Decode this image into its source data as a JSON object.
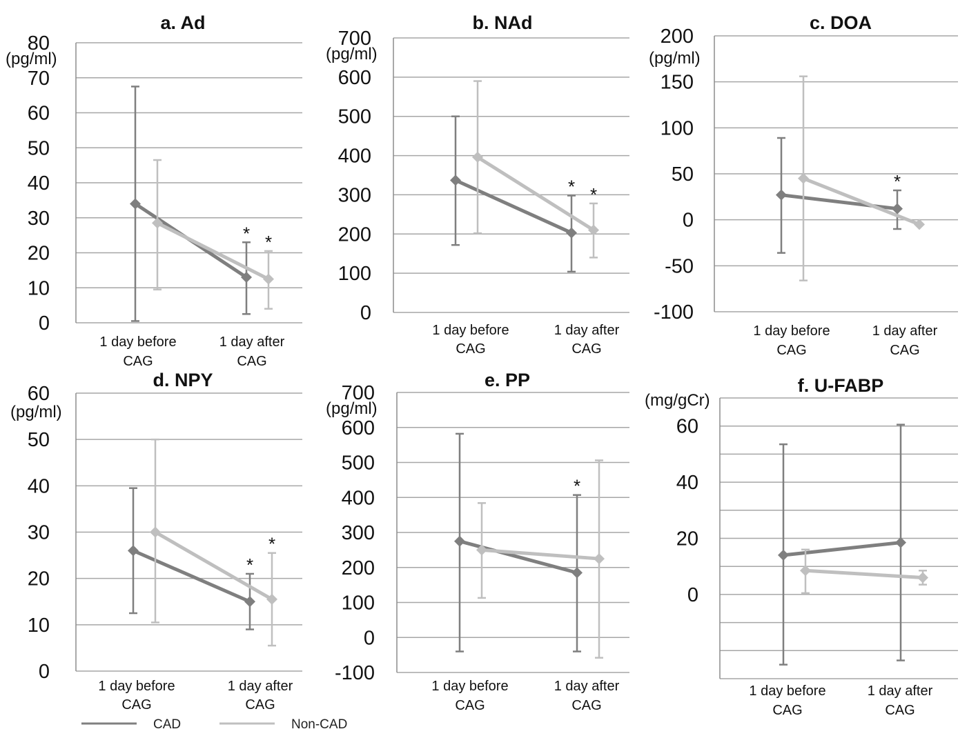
{
  "colors": {
    "cad": "#7f7f7f",
    "non_cad": "#bfbfbf",
    "grid": "#a6a6a6",
    "axis": "#8c8c8c",
    "text": "#111111"
  },
  "legend": {
    "entries": [
      "CAD",
      "Non-CAD"
    ],
    "placement": "bottom-left"
  },
  "chart_data": [
    {
      "id": "a",
      "type": "line",
      "title": "a. Ad",
      "ylabel": "(pg/ml)",
      "ylim": [
        0,
        80
      ],
      "yticks": [
        "0",
        "10",
        "20",
        "30",
        "40",
        "50",
        "60",
        "70",
        "80"
      ],
      "categories": [
        [
          "1 day before",
          "CAG"
        ],
        [
          "1 day after",
          "CAG"
        ]
      ],
      "series": [
        {
          "name": "CAD",
          "values": [
            34,
            13
          ],
          "err_low": [
            0.5,
            2.5
          ],
          "err_high": [
            67.5,
            23
          ],
          "significant": [
            false,
            true
          ]
        },
        {
          "name": "Non-CAD",
          "values": [
            28.5,
            12.5
          ],
          "err_low": [
            9.5,
            4
          ],
          "err_high": [
            46.5,
            20.5
          ],
          "significant": [
            false,
            true
          ]
        }
      ]
    },
    {
      "id": "b",
      "type": "line",
      "title": "b. NAd",
      "ylabel": "(pg/ml)",
      "ylim": [
        0,
        700
      ],
      "yticks": [
        "0",
        "100",
        "200",
        "300",
        "400",
        "500",
        "600",
        "700"
      ],
      "categories": [
        [
          "1 day before",
          "CAG"
        ],
        [
          "1 day after",
          "CAG"
        ]
      ],
      "series": [
        {
          "name": "CAD",
          "values": [
            337,
            203
          ],
          "err_low": [
            172,
            104
          ],
          "err_high": [
            500,
            298
          ],
          "significant": [
            false,
            true
          ]
        },
        {
          "name": "Non-CAD",
          "values": [
            396,
            210
          ],
          "err_low": [
            202,
            140
          ],
          "err_high": [
            590,
            278
          ],
          "significant": [
            false,
            true
          ]
        }
      ]
    },
    {
      "id": "c",
      "type": "line",
      "title": "c. DOA",
      "ylabel": "(pg/ml)",
      "ylim": [
        -100,
        200
      ],
      "yticks": [
        "-100",
        "-50",
        "0",
        "50",
        "100",
        "150",
        "200"
      ],
      "categories": [
        [
          "1 day before",
          "CAG"
        ],
        [
          "1 day after",
          "CAG"
        ]
      ],
      "series": [
        {
          "name": "CAD",
          "values": [
            27,
            12
          ],
          "err_low": [
            -36,
            -10
          ],
          "err_high": [
            89,
            32
          ],
          "significant": [
            false,
            true
          ]
        },
        {
          "name": "Non-CAD",
          "values": [
            45,
            -5
          ],
          "err_low": [
            -66,
            -5
          ],
          "err_high": [
            156,
            -5
          ],
          "significant": [
            false,
            false
          ]
        }
      ]
    },
    {
      "id": "d",
      "type": "line",
      "title": "d. NPY",
      "ylabel": "(pg/ml)",
      "ylim": [
        0,
        60
      ],
      "yticks": [
        "0",
        "10",
        "20",
        "30",
        "40",
        "50",
        "60"
      ],
      "categories": [
        [
          "1 day before",
          "CAG"
        ],
        [
          "1 day after",
          "CAG"
        ]
      ],
      "series": [
        {
          "name": "CAD",
          "values": [
            26,
            15
          ],
          "err_low": [
            12.5,
            9
          ],
          "err_high": [
            39.5,
            21
          ],
          "significant": [
            false,
            true
          ]
        },
        {
          "name": "Non-CAD",
          "values": [
            30,
            15.5
          ],
          "err_low": [
            10.5,
            5.5
          ],
          "err_high": [
            50,
            25.5
          ],
          "significant": [
            false,
            true
          ]
        }
      ]
    },
    {
      "id": "e",
      "type": "line",
      "title": "e. PP",
      "ylabel": "(pg/ml)",
      "ylim": [
        -100,
        700
      ],
      "yticks": [
        "-100",
        "0",
        "100",
        "200",
        "300",
        "400",
        "500",
        "600",
        "700"
      ],
      "categories": [
        [
          "1 day before",
          "CAG"
        ],
        [
          "1 day after",
          "CAG"
        ]
      ],
      "series": [
        {
          "name": "CAD",
          "values": [
            275,
            185
          ],
          "err_low": [
            -40,
            -40
          ],
          "err_high": [
            582,
            407
          ],
          "significant": [
            false,
            true
          ]
        },
        {
          "name": "Non-CAD",
          "values": [
            250,
            225
          ],
          "err_low": [
            113,
            -58
          ],
          "err_high": [
            384,
            506
          ],
          "significant": [
            false,
            false
          ]
        }
      ]
    },
    {
      "id": "f",
      "type": "line",
      "title": "f. U-FABP",
      "ylabel": "(mg/gCr)",
      "ylim": [
        -30,
        70
      ],
      "yticks": [
        "0",
        "20",
        "40",
        "60"
      ],
      "categories": [
        [
          "1 day before",
          "CAG"
        ],
        [
          "1 day after",
          "CAG"
        ]
      ],
      "series": [
        {
          "name": "CAD",
          "values": [
            14,
            18.5
          ],
          "err_low": [
            -25,
            -23.5
          ],
          "err_high": [
            53.5,
            60.5
          ],
          "significant": [
            false,
            false
          ]
        },
        {
          "name": "Non-CAD",
          "values": [
            8.5,
            6
          ],
          "err_low": [
            0.5,
            3.5
          ],
          "err_high": [
            16,
            8.5
          ],
          "significant": [
            false,
            false
          ]
        }
      ]
    }
  ]
}
